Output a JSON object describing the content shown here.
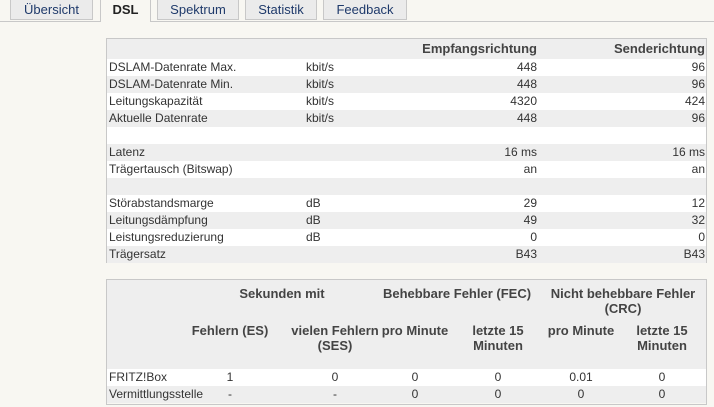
{
  "tabs": [
    {
      "label": "Übersicht",
      "active": false
    },
    {
      "label": "DSL",
      "active": true
    },
    {
      "label": "Spektrum",
      "active": false
    },
    {
      "label": "Statistik",
      "active": false
    },
    {
      "label": "Feedback",
      "active": false
    }
  ],
  "line_table": {
    "headers": {
      "rx": "Empfangsrichtung",
      "tx": "Senderichtung"
    },
    "rows": [
      {
        "label": "DSLAM-Datenrate Max.",
        "unit": "kbit/s",
        "rx": "448",
        "tx": "96"
      },
      {
        "label": "DSLAM-Datenrate Min.",
        "unit": "kbit/s",
        "rx": "448",
        "tx": "96"
      },
      {
        "label": "Leitungskapazität",
        "unit": "kbit/s",
        "rx": "4320",
        "tx": "424"
      },
      {
        "label": "Aktuelle Datenrate",
        "unit": "kbit/s",
        "rx": "448",
        "tx": "96"
      },
      {
        "label": "",
        "unit": "",
        "rx": "",
        "tx": ""
      },
      {
        "label": "Latenz",
        "unit": "",
        "rx": "16 ms",
        "tx": "16 ms"
      },
      {
        "label": "Trägertausch (Bitswap)",
        "unit": "",
        "rx": "an",
        "tx": "an"
      },
      {
        "label": "",
        "unit": "",
        "rx": "",
        "tx": ""
      },
      {
        "label": "Störabstandsmarge",
        "unit": "dB",
        "rx": "29",
        "tx": "12"
      },
      {
        "label": "Leitungsdämpfung",
        "unit": "dB",
        "rx": "49",
        "tx": "32"
      },
      {
        "label": "Leistungsreduzierung",
        "unit": "dB",
        "rx": "0",
        "tx": "0"
      },
      {
        "label": "Trägersatz",
        "unit": "",
        "rx": "B43",
        "tx": "B43"
      }
    ]
  },
  "error_table": {
    "groups": {
      "seconds": "Sekunden mit",
      "fec": "Behebbare Fehler (FEC)",
      "crc": "Nicht behebbare Fehler (CRC)"
    },
    "columns": [
      "Fehlern (ES)",
      "vielen Fehlern (SES)",
      "pro Minute",
      "letzte 15 Minuten",
      "pro Minute",
      "letzte 15 Minuten"
    ],
    "rows": [
      {
        "label": "FRITZ!Box",
        "values": [
          "1",
          "0",
          "0",
          "0",
          "0.01",
          "0"
        ]
      },
      {
        "label": "Vermittlungsstelle",
        "values": [
          "-",
          "-",
          "0",
          "0",
          "0",
          "0"
        ]
      }
    ]
  }
}
